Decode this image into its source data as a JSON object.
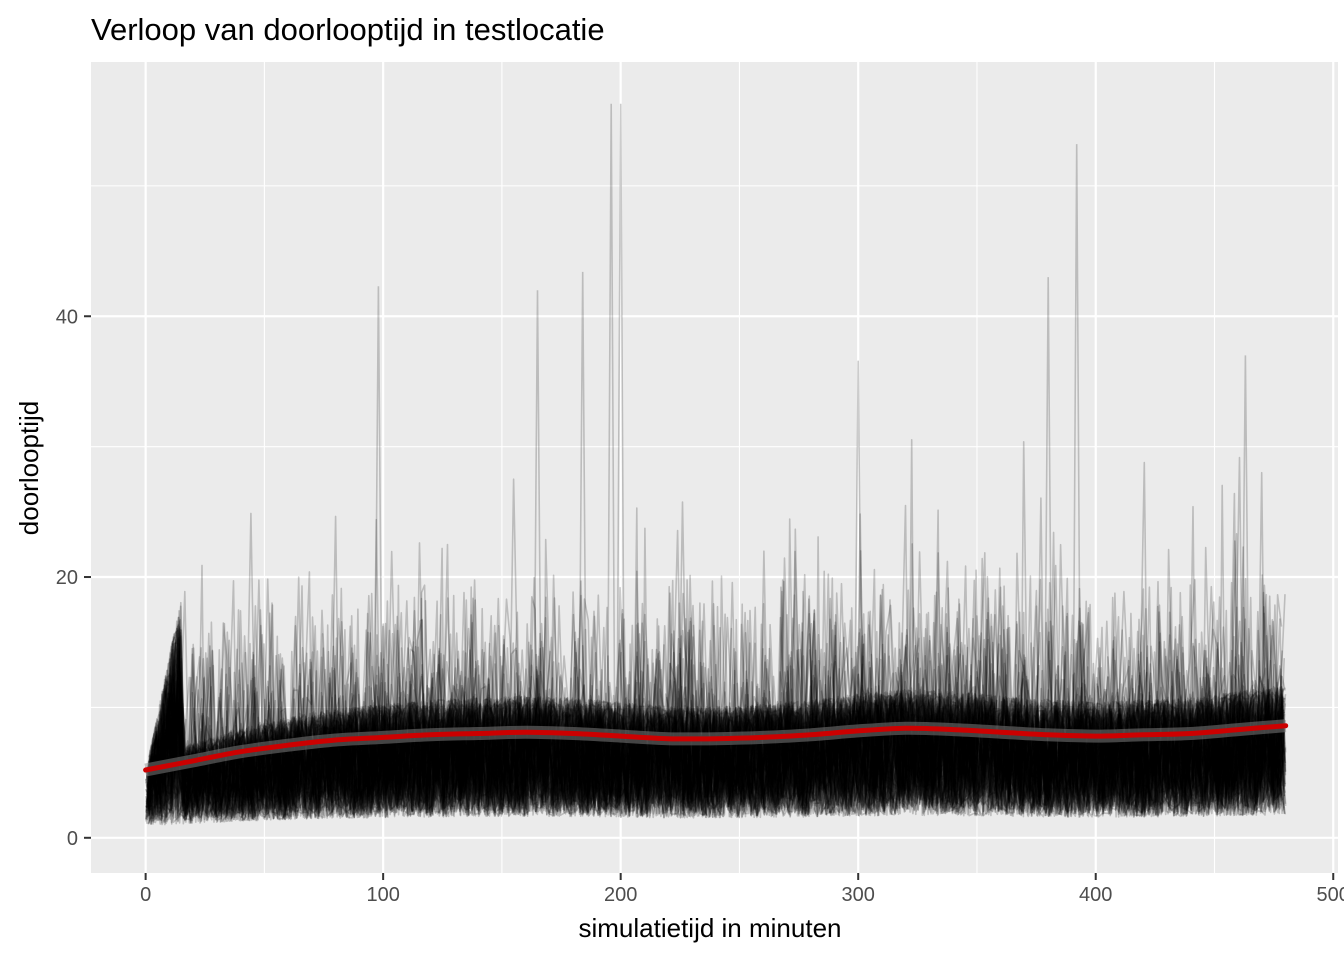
{
  "chart_data": {
    "type": "line",
    "title": "Verloop van doorlooptijd in testlocatie",
    "xlabel": "simulatietijd in minuten",
    "ylabel": "doorlooptijd",
    "xlim": [
      -23,
      502
    ],
    "ylim": [
      -2.7,
      59.5
    ],
    "x_ticks": [
      0,
      100,
      200,
      300,
      400,
      500
    ],
    "x_tick_labels": [
      "0",
      "100",
      "200",
      "300",
      "400",
      "500"
    ],
    "y_ticks": [
      0,
      20,
      40
    ],
    "y_tick_labels": [
      "0",
      "20",
      "40"
    ],
    "grid": true,
    "background": "#ebebeb",
    "gridline_color": "#ffffff",
    "series": [
      {
        "kind": "replications-bundle",
        "color": "#000000",
        "opacity": 0.2,
        "replications": 110,
        "x_range": [
          0,
          480
        ],
        "typical_range": [
          2,
          20
        ],
        "spikes": [
          {
            "x": 98,
            "y": 42.3
          },
          {
            "x": 165,
            "y": 42.0
          },
          {
            "x": 184,
            "y": 43.4
          },
          {
            "x": 196,
            "y": 56.3
          },
          {
            "x": 200,
            "y": 56.3
          },
          {
            "x": 380,
            "y": 43.0
          },
          {
            "x": 392,
            "y": 53.2
          },
          {
            "x": 300,
            "y": 36.6
          },
          {
            "x": 463,
            "y": 37.0
          }
        ]
      },
      {
        "kind": "smooth",
        "color": "#cc0000",
        "x": [
          0,
          20,
          40,
          60,
          80,
          100,
          120,
          140,
          160,
          180,
          200,
          220,
          240,
          260,
          280,
          300,
          320,
          340,
          360,
          380,
          400,
          420,
          440,
          460,
          480
        ],
        "y": [
          5.2,
          5.9,
          6.6,
          7.1,
          7.5,
          7.7,
          7.9,
          8.0,
          8.1,
          8.0,
          7.8,
          7.6,
          7.6,
          7.7,
          7.9,
          8.2,
          8.4,
          8.3,
          8.1,
          7.9,
          7.8,
          7.9,
          8.0,
          8.3,
          8.6
        ]
      }
    ]
  }
}
